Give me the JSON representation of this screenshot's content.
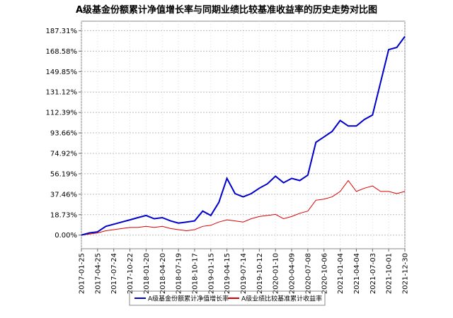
{
  "chart_data": {
    "type": "line",
    "title": "A级基金份额累计净值增长率与同期业绩比较基准收益率的历史走势对比图",
    "x": [
      "2017-01-25",
      "2017-03-10",
      "2017-04-25",
      "2017-06-10",
      "2017-07-24",
      "2017-09-07",
      "2017-10-22",
      "2017-12-05",
      "2018-01-20",
      "2018-03-06",
      "2018-04-20",
      "2018-06-05",
      "2018-07-19",
      "2018-09-02",
      "2018-10-17",
      "2018-12-01",
      "2019-01-15",
      "2019-03-01",
      "2019-04-15",
      "2019-05-30",
      "2019-07-14",
      "2019-08-28",
      "2019-10-12",
      "2019-11-26",
      "2020-01-10",
      "2020-02-24",
      "2020-04-09",
      "2020-05-24",
      "2020-07-08",
      "2020-08-22",
      "2020-10-06",
      "2020-11-20",
      "2021-01-04",
      "2021-02-18",
      "2021-04-04",
      "2021-05-19",
      "2021-07-03",
      "2021-08-17",
      "2021-10-01",
      "2021-11-15",
      "2021-12-30"
    ],
    "series": [
      {
        "name": "A级基金份额累计净值增长率",
        "color": "#0000cc",
        "values": [
          0,
          2,
          3,
          8,
          10,
          12,
          14,
          16,
          18,
          15,
          16,
          13,
          11,
          12,
          13,
          22,
          18,
          30,
          52,
          38,
          35,
          38,
          43,
          47,
          54,
          48,
          52,
          50,
          55,
          85,
          90,
          95,
          105,
          100,
          100,
          106,
          110,
          140,
          170,
          172,
          182
        ]
      },
      {
        "name": "A级业绩比较基准累计收益率",
        "color": "#dd0000",
        "values": [
          0,
          1,
          2,
          4,
          5,
          6,
          7,
          7,
          8,
          7,
          8,
          6,
          5,
          4,
          5,
          8,
          9,
          12,
          14,
          13,
          12,
          15,
          17,
          18,
          19,
          15,
          17,
          20,
          22,
          32,
          33,
          35,
          40,
          50,
          40,
          43,
          45,
          40,
          40,
          38,
          40
        ]
      }
    ],
    "xlim": [
      "2017-01-25",
      "2021-12-30"
    ],
    "xticks": [
      "2017-01-25",
      "2017-04-25",
      "2017-07-24",
      "2017-10-22",
      "2018-01-20",
      "2018-04-20",
      "2018-07-19",
      "2018-10-17",
      "2019-01-15",
      "2019-04-15",
      "2019-07-14",
      "2019-10-12",
      "2020-01-10",
      "2020-04-09",
      "2020-07-08",
      "2020-10-06",
      "2021-01-04",
      "2021-04-04",
      "2021-07-03",
      "2021-10-01",
      "2021-12-30"
    ],
    "ylim": [
      -12.5,
      196
    ],
    "yticks": [
      {
        "value": 0,
        "label": "0.00%"
      },
      {
        "value": 18.73,
        "label": "18.73%"
      },
      {
        "value": 37.46,
        "label": "37.46%"
      },
      {
        "value": 56.19,
        "label": "56.19%"
      },
      {
        "value": 74.92,
        "label": "74.92%"
      },
      {
        "value": 93.66,
        "label": "93.66%"
      },
      {
        "value": 112.39,
        "label": "112.39%"
      },
      {
        "value": 131.12,
        "label": "131.12%"
      },
      {
        "value": 149.85,
        "label": "149.85%"
      },
      {
        "value": 168.58,
        "label": "168.58%"
      },
      {
        "value": 187.31,
        "label": "187.31%"
      }
    ],
    "grid": true,
    "legend": "bottom"
  }
}
